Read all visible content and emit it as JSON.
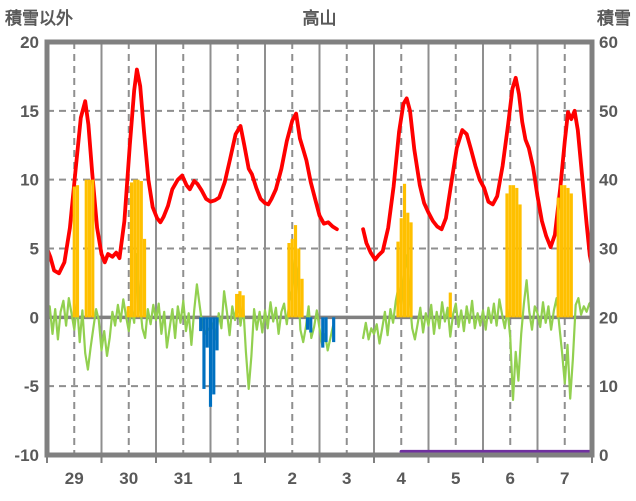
{
  "header": {
    "left_axis_title": "積雪以外",
    "chart_title": "高山",
    "right_axis_title": "積雪"
  },
  "chart_data": {
    "type": "line",
    "title": "高山",
    "station": "高山",
    "left_axis": {
      "title": "積雪以外",
      "min": -10,
      "max": 20,
      "ticks": [
        20,
        15,
        10,
        5,
        0,
        -5,
        -10
      ]
    },
    "right_axis": {
      "title": "積雪",
      "min": 0,
      "max": 60,
      "ticks": [
        60,
        50,
        40,
        30,
        20,
        10,
        0
      ]
    },
    "x_axis": {
      "labels": [
        "29",
        "30",
        "31",
        "1",
        "2",
        "3",
        "4",
        "5",
        "6",
        "7"
      ],
      "days": 10
    },
    "grid": {
      "h_dashed_at": [
        15,
        10,
        5,
        -5
      ],
      "zero_line_at": 0,
      "v_solid": "day-boundaries",
      "v_dashed": "noons"
    },
    "colors": {
      "red": "#FF0000",
      "green": "#92D050",
      "orange": "#FFC000",
      "blue": "#0070C0",
      "purple": "#7030A0",
      "axis": "#808080",
      "grid": "#8F8F8F",
      "text": "#595959",
      "background": "#FFFFFF"
    },
    "series": [
      {
        "name": "red-line",
        "type": "line",
        "axis": "left",
        "color": "#FF0000",
        "segments": [
          [
            [
              0.0,
              5.0
            ],
            [
              0.06,
              4.4
            ],
            [
              0.13,
              3.4
            ],
            [
              0.22,
              3.2
            ],
            [
              0.32,
              4.0
            ],
            [
              0.42,
              6.5
            ],
            [
              0.52,
              10.5
            ],
            [
              0.62,
              14.5
            ],
            [
              0.7,
              15.7
            ],
            [
              0.76,
              14.0
            ],
            [
              0.83,
              10.5
            ],
            [
              0.92,
              6.5
            ],
            [
              1.0,
              4.6
            ],
            [
              1.06,
              4.0
            ],
            [
              1.12,
              4.6
            ],
            [
              1.2,
              4.4
            ],
            [
              1.27,
              4.7
            ],
            [
              1.33,
              4.3
            ],
            [
              1.42,
              7.0
            ],
            [
              1.52,
              12.5
            ],
            [
              1.6,
              16.5
            ],
            [
              1.65,
              18.0
            ],
            [
              1.71,
              16.8
            ],
            [
              1.78,
              13.5
            ],
            [
              1.86,
              10.0
            ],
            [
              1.94,
              8.0
            ],
            [
              2.02,
              7.2
            ],
            [
              2.08,
              6.9
            ],
            [
              2.14,
              7.3
            ],
            [
              2.22,
              8.1
            ],
            [
              2.3,
              9.3
            ],
            [
              2.4,
              10.0
            ],
            [
              2.48,
              10.3
            ],
            [
              2.56,
              9.6
            ],
            [
              2.62,
              9.3
            ],
            [
              2.7,
              9.9
            ],
            [
              2.76,
              9.7
            ],
            [
              2.84,
              9.2
            ],
            [
              2.92,
              8.6
            ],
            [
              3.0,
              8.4
            ],
            [
              3.08,
              8.5
            ],
            [
              3.16,
              8.7
            ],
            [
              3.26,
              9.8
            ],
            [
              3.36,
              11.5
            ],
            [
              3.46,
              13.3
            ],
            [
              3.55,
              13.9
            ],
            [
              3.62,
              12.5
            ],
            [
              3.7,
              10.8
            ],
            [
              3.76,
              10.4
            ],
            [
              3.84,
              9.4
            ],
            [
              3.92,
              8.6
            ],
            [
              4.0,
              8.3
            ],
            [
              4.06,
              8.2
            ],
            [
              4.12,
              8.6
            ],
            [
              4.2,
              9.3
            ],
            [
              4.3,
              10.8
            ],
            [
              4.4,
              12.8
            ],
            [
              4.5,
              14.3
            ],
            [
              4.57,
              14.8
            ],
            [
              4.64,
              13.0
            ],
            [
              4.7,
              12.2
            ],
            [
              4.76,
              11.4
            ],
            [
              4.84,
              9.8
            ],
            [
              4.92,
              8.6
            ],
            [
              5.0,
              7.4
            ],
            [
              5.08,
              6.8
            ],
            [
              5.16,
              6.9
            ],
            [
              5.24,
              6.6
            ],
            [
              5.32,
              6.4
            ]
          ],
          [
            [
              5.8,
              6.4
            ],
            [
              5.86,
              5.4
            ],
            [
              5.94,
              4.7
            ],
            [
              6.02,
              4.2
            ],
            [
              6.08,
              4.5
            ],
            [
              6.16,
              4.8
            ],
            [
              6.26,
              6.5
            ],
            [
              6.36,
              9.5
            ],
            [
              6.46,
              13.5
            ],
            [
              6.54,
              15.5
            ],
            [
              6.6,
              15.9
            ],
            [
              6.66,
              15.0
            ],
            [
              6.74,
              12.2
            ],
            [
              6.84,
              9.6
            ],
            [
              6.92,
              8.3
            ],
            [
              7.0,
              7.6
            ],
            [
              7.08,
              7.0
            ],
            [
              7.16,
              6.6
            ],
            [
              7.24,
              6.4
            ],
            [
              7.32,
              7.2
            ],
            [
              7.42,
              9.8
            ],
            [
              7.52,
              12.3
            ],
            [
              7.62,
              13.6
            ],
            [
              7.7,
              13.3
            ],
            [
              7.78,
              12.2
            ],
            [
              7.86,
              11.0
            ],
            [
              7.94,
              10.0
            ],
            [
              8.02,
              9.4
            ],
            [
              8.1,
              8.4
            ],
            [
              8.18,
              8.2
            ],
            [
              8.26,
              8.8
            ],
            [
              8.36,
              11.0
            ],
            [
              8.46,
              14.0
            ],
            [
              8.54,
              16.6
            ],
            [
              8.6,
              17.4
            ],
            [
              8.66,
              16.2
            ],
            [
              8.72,
              14.2
            ],
            [
              8.78,
              12.9
            ],
            [
              8.84,
              12.3
            ],
            [
              8.92,
              10.9
            ],
            [
              9.0,
              8.8
            ],
            [
              9.08,
              7.0
            ],
            [
              9.16,
              5.9
            ],
            [
              9.24,
              5.1
            ],
            [
              9.32,
              6.0
            ],
            [
              9.42,
              9.5
            ],
            [
              9.5,
              12.8
            ],
            [
              9.56,
              14.9
            ],
            [
              9.62,
              14.4
            ],
            [
              9.68,
              15.0
            ],
            [
              9.74,
              13.6
            ],
            [
              9.82,
              10.2
            ],
            [
              9.9,
              6.8
            ],
            [
              9.96,
              4.5
            ],
            [
              10.0,
              3.7
            ]
          ]
        ]
      },
      {
        "name": "green-line",
        "type": "sampled-line",
        "axis": "left",
        "color": "#92D050",
        "start": 0,
        "step": 0.05,
        "values": [
          -0.4,
          0.8,
          -1.2,
          0.6,
          -1.6,
          0.4,
          1.2,
          -0.6,
          1.4,
          0.3,
          -0.9,
          1.0,
          -1.8,
          0.5,
          -2.6,
          -3.8,
          -2.2,
          -0.8,
          0.6,
          -0.2,
          -2.4,
          -1.0,
          -2.8,
          -1.5,
          0.4,
          -0.6,
          0.9,
          -0.3,
          1.3,
          0.1,
          -1.0,
          0.7,
          -0.4,
          4.6,
          1.2,
          -0.8,
          -1.5,
          0.6,
          -0.5,
          0.9,
          -0.2,
          1.0,
          -1.2,
          0.4,
          -2.2,
          -0.8,
          0.6,
          -1.5,
          0.8,
          -0.4,
          1.2,
          -1.0,
          0.3,
          -2.0,
          0.5,
          2.4,
          0.9,
          -0.6,
          -1.2,
          -0.8,
          -1.0,
          -0.4,
          -1.6,
          0.3,
          -0.8,
          1.9,
          0.4,
          -1.3,
          0.8,
          -0.2,
          1.5,
          -0.6,
          0.9,
          -2.5,
          -5.2,
          -2.8,
          0.6,
          -0.9,
          0.4,
          -1.1,
          0.5,
          -0.8,
          1.1,
          -0.3,
          0.7,
          -1.2,
          0.4,
          1.0,
          -0.5,
          1.2,
          2.0,
          4.2,
          2.9,
          -0.9,
          -1.8,
          -0.7,
          0.8,
          -1.5,
          -0.7,
          0.5,
          -0.8,
          -2.0,
          -1.2,
          -2.4,
          -1.5,
          -0.6,
          null,
          null,
          null,
          null,
          null,
          null,
          null,
          null,
          null,
          null,
          -1.5,
          -0.4,
          -1.6,
          -0.8,
          -1.2,
          -0.5,
          -1.9,
          -0.8,
          0.4,
          -1.3,
          0.6,
          -0.4,
          1.2,
          2.2,
          0.8,
          3.0,
          4.5,
          1.5,
          -0.8,
          -1.6,
          -0.5,
          0.7,
          -1.1,
          0.3,
          -0.6,
          0.9,
          -1.2,
          0.4,
          -0.8,
          1.1,
          -0.3,
          0.7,
          -1.4,
          0.2,
          1.0,
          -0.7,
          0.5,
          -1.0,
          0.8,
          -0.4,
          1.2,
          -0.8,
          0.3,
          -0.6,
          0.5,
          -0.9,
          0.7,
          -0.4,
          1.0,
          -0.6,
          1.3,
          0.2,
          -0.8,
          0.6,
          -1.5,
          -6.0,
          -2.5,
          -4.6,
          -1.2,
          1.0,
          2.7,
          0.4,
          -0.9,
          0.8,
          0.3,
          -0.7,
          1.1,
          -0.4,
          0.8,
          -0.9,
          0.5,
          1.4,
          -0.6,
          -2.5,
          -4.8,
          -2.0,
          -5.9,
          -3.0,
          0.9,
          1.4,
          0.2,
          0.8,
          0.4,
          1.0,
          1.2
        ]
      },
      {
        "name": "orange-bars",
        "type": "bar",
        "axis": "left",
        "color": "#FFC000",
        "bars": [
          [
            0.5,
            9.5
          ],
          [
            0.56,
            9.6
          ],
          [
            0.72,
            10.0
          ],
          [
            0.78,
            10.0
          ],
          [
            0.84,
            10.0
          ],
          [
            1.49,
            0.8
          ],
          [
            1.55,
            9.8
          ],
          [
            1.61,
            10.0
          ],
          [
            1.67,
            10.0
          ],
          [
            1.73,
            9.9
          ],
          [
            1.79,
            5.7
          ],
          [
            3.48,
            1.7
          ],
          [
            3.54,
            1.9
          ],
          [
            3.6,
            1.6
          ],
          [
            4.44,
            5.4
          ],
          [
            4.5,
            5.7
          ],
          [
            4.56,
            6.7
          ],
          [
            4.62,
            5.0
          ],
          [
            4.68,
            2.8
          ],
          [
            6.44,
            5.5
          ],
          [
            6.5,
            7.2
          ],
          [
            6.56,
            9.7
          ],
          [
            6.62,
            7.6
          ],
          [
            6.68,
            6.9
          ],
          [
            7.4,
            1.8
          ],
          [
            8.44,
            9.0
          ],
          [
            8.5,
            9.6
          ],
          [
            8.56,
            9.6
          ],
          [
            8.62,
            9.4
          ],
          [
            8.68,
            8.2
          ],
          [
            9.38,
            8.7
          ],
          [
            9.44,
            9.6
          ],
          [
            9.5,
            9.6
          ],
          [
            9.56,
            9.4
          ],
          [
            9.62,
            9.0
          ]
        ]
      },
      {
        "name": "blue-bars",
        "type": "bar",
        "axis": "left",
        "color": "#0070C0",
        "bars": [
          [
            2.82,
            -1.0
          ],
          [
            2.88,
            -5.2
          ],
          [
            2.94,
            -2.2
          ],
          [
            3.0,
            -6.5
          ],
          [
            3.06,
            -5.6
          ],
          [
            3.12,
            -2.4
          ],
          [
            4.78,
            -0.9
          ],
          [
            4.84,
            -1.1
          ],
          [
            5.06,
            -2.2
          ],
          [
            5.12,
            -1.8
          ],
          [
            5.26,
            -1.8
          ]
        ]
      },
      {
        "name": "purple-line",
        "type": "line",
        "axis": "right",
        "color": "#7030A0",
        "segments": [
          [
            [
              6.5,
              0.5
            ],
            [
              10.0,
              0.5
            ]
          ]
        ]
      }
    ]
  }
}
